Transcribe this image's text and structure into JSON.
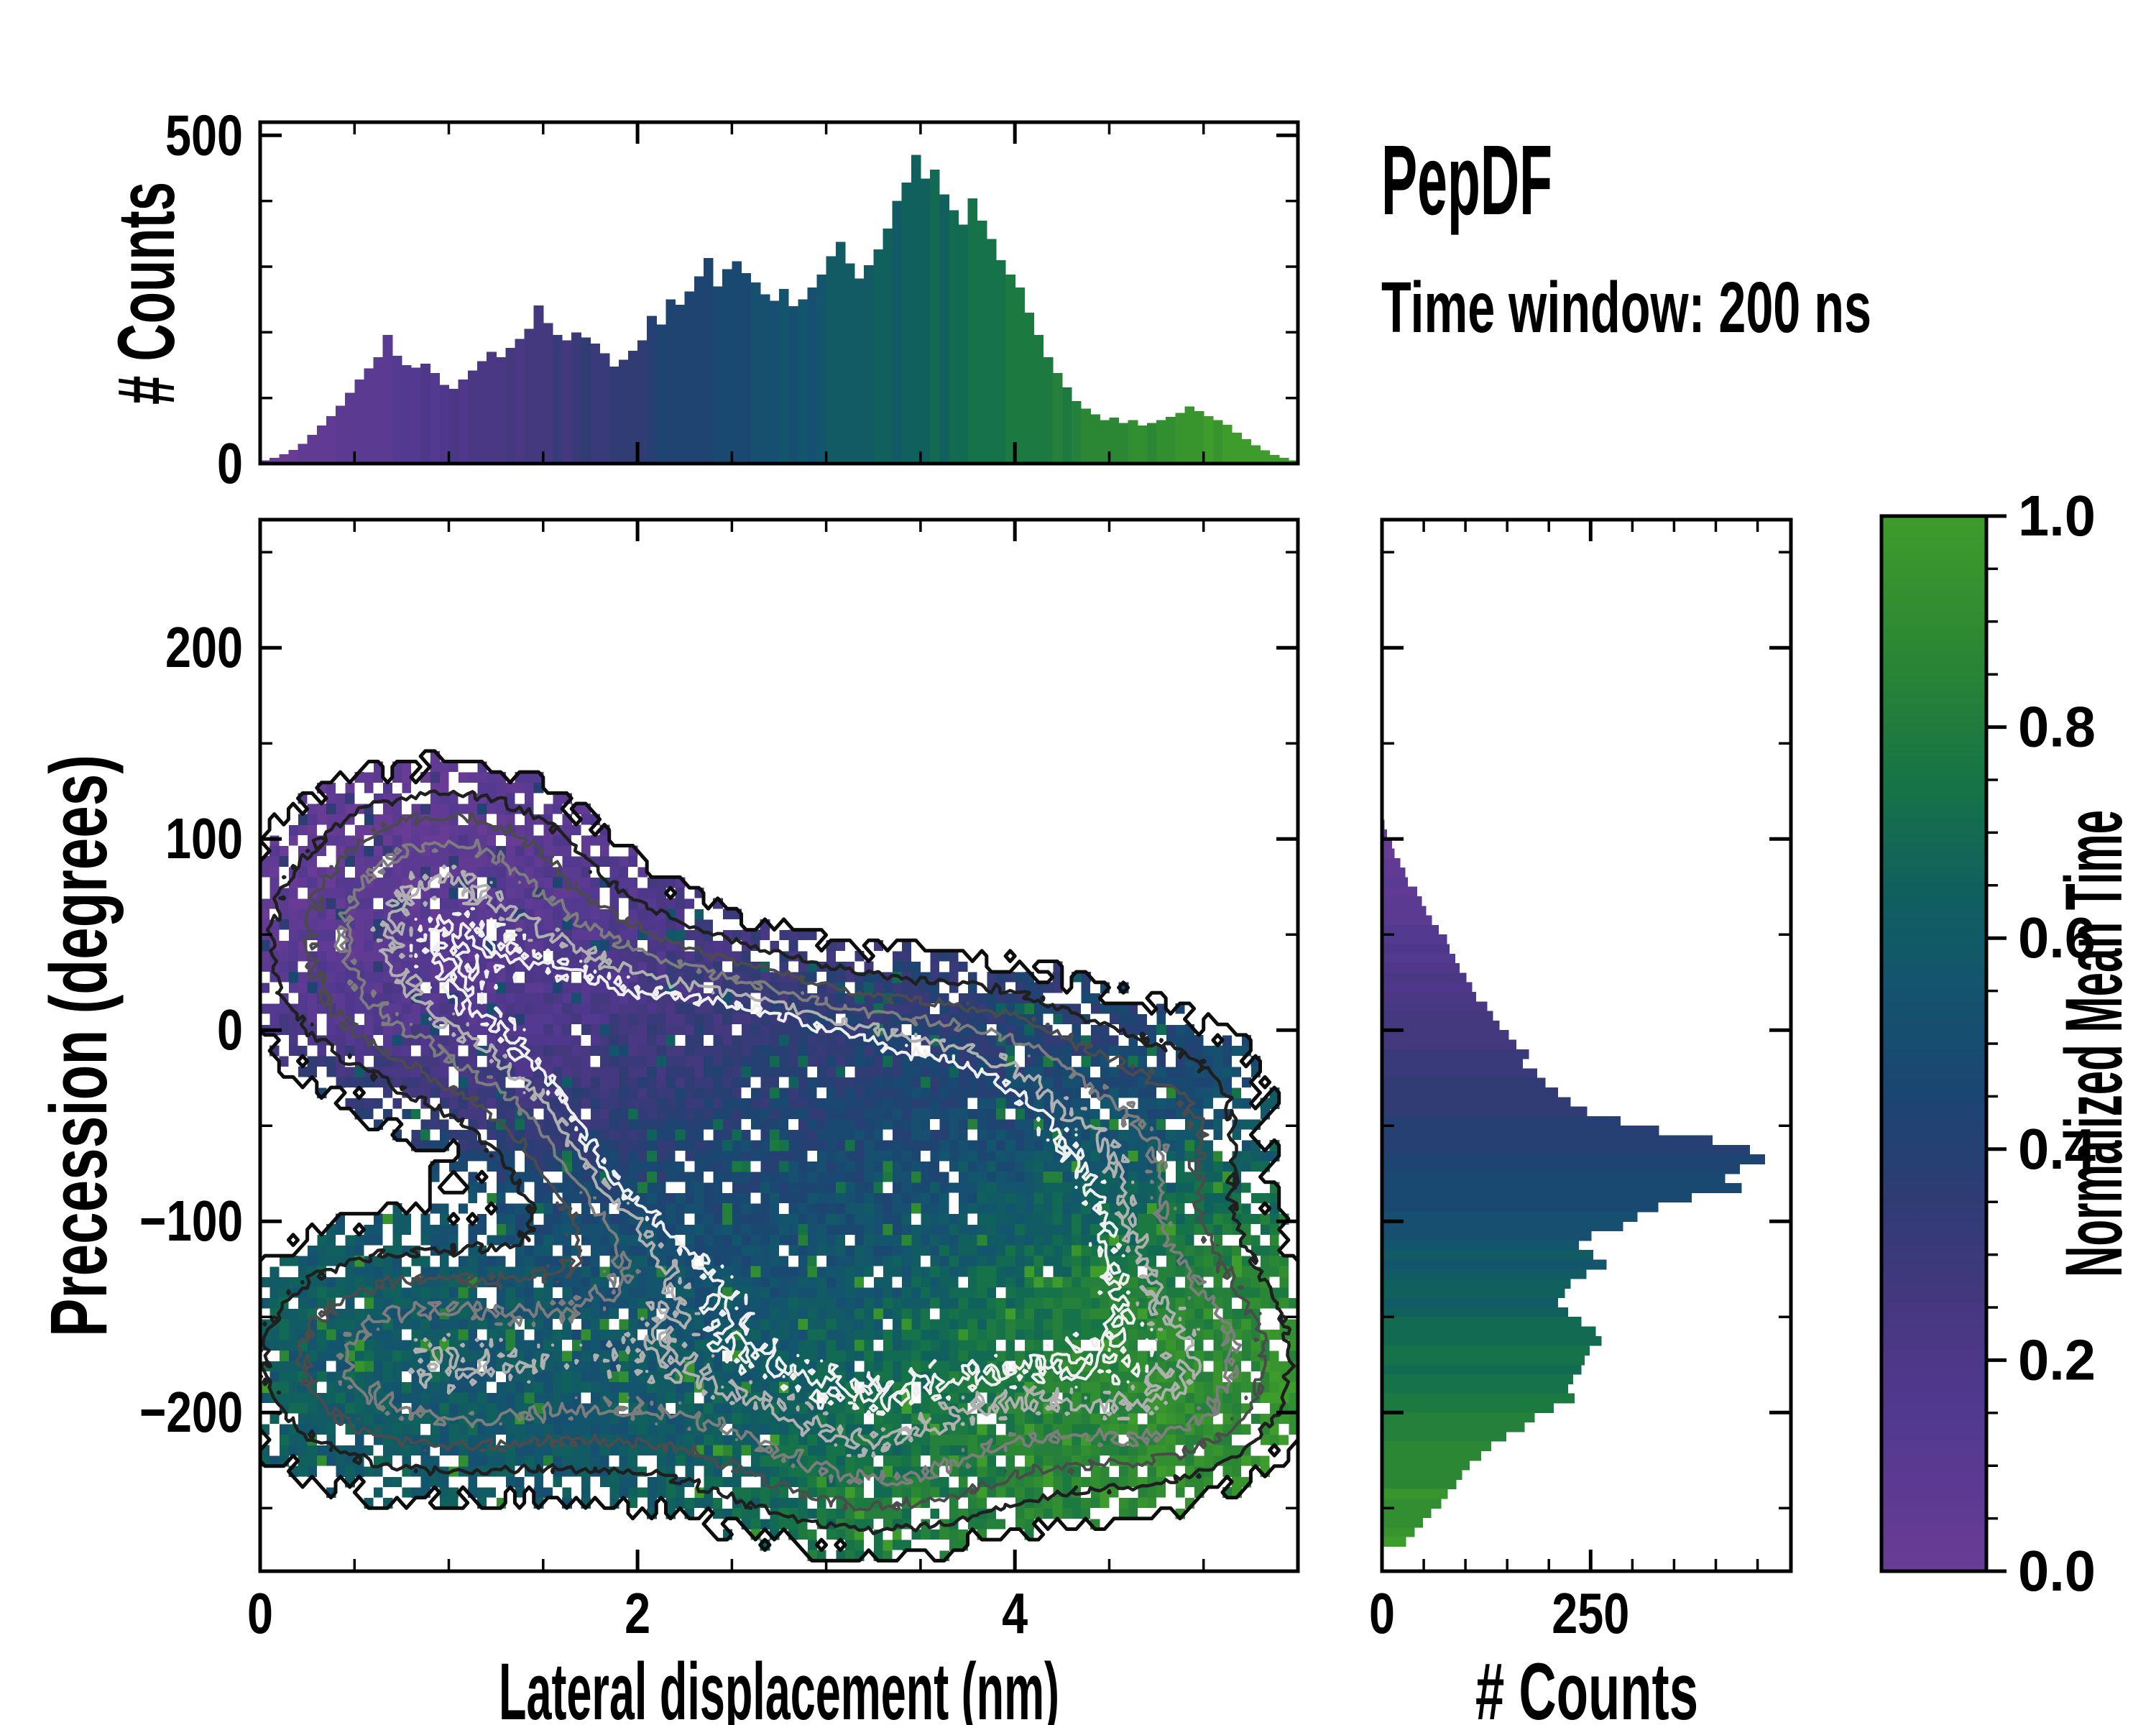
{
  "title": {
    "text": "PepDF"
  },
  "subtitle": {
    "text": "Time window: 200 ns"
  },
  "background": "#ffffff",
  "colormap": {
    "label": "Normalized Mean Time",
    "stops": [
      [
        0.0,
        "#683C94"
      ],
      [
        0.14,
        "#533990"
      ],
      [
        0.25,
        "#463780"
      ],
      [
        0.35,
        "#2F3C73"
      ],
      [
        0.45,
        "#1B4572"
      ],
      [
        0.55,
        "#14536E"
      ],
      [
        0.65,
        "#10615E"
      ],
      [
        0.75,
        "#177445"
      ],
      [
        0.87,
        "#2B8733"
      ],
      [
        1.0,
        "#3E9C2C"
      ]
    ]
  },
  "chart_data": [
    {
      "id": "top_histogram",
      "type": "bar",
      "orientation": "vertical",
      "ylabel": "# Counts",
      "x_range": [
        0,
        5.5
      ],
      "y_range": [
        0,
        520
      ],
      "bin_width_nm": 0.05,
      "yticks": [
        {
          "label": "0",
          "v": 0
        },
        {
          "label": "500",
          "v": 500
        }
      ],
      "ytick_minor_step": 100,
      "xtick_major": [
        0,
        2,
        4
      ],
      "xtick_minor_step": 0.5,
      "color_by": "normalized mean time vs lateral displacement",
      "values": [
        5,
        9,
        14,
        21,
        30,
        44,
        58,
        72,
        88,
        108,
        128,
        145,
        162,
        196,
        164,
        150,
        146,
        152,
        138,
        120,
        114,
        128,
        142,
        156,
        170,
        162,
        176,
        190,
        205,
        241,
        214,
        196,
        188,
        200,
        192,
        183,
        168,
        148,
        158,
        172,
        188,
        225,
        212,
        250,
        242,
        262,
        285,
        313,
        270,
        296,
        308,
        290,
        276,
        258,
        248,
        266,
        240,
        250,
        268,
        288,
        316,
        338,
        305,
        282,
        302,
        326,
        358,
        400,
        428,
        470,
        434,
        448,
        410,
        386,
        364,
        404,
        370,
        342,
        310,
        288,
        268,
        230,
        196,
        162,
        138,
        116,
        95,
        84,
        75,
        66,
        70,
        62,
        66,
        58,
        62,
        66,
        71,
        77,
        87,
        80,
        72,
        66,
        59,
        47,
        37,
        28,
        20,
        13,
        9,
        5
      ]
    },
    {
      "id": "joint_heatmap",
      "type": "heatmap",
      "xlabel": "Lateral displacement (nm)",
      "ylabel": "Precession (degrees)",
      "x_range": [
        0,
        5.5
      ],
      "y_range": [
        -283,
        267
      ],
      "xticks": [
        {
          "label": "0",
          "v": 0
        },
        {
          "label": "2",
          "v": 2
        },
        {
          "label": "4",
          "v": 4
        }
      ],
      "yticks": [
        {
          "label": "200",
          "v": 200
        },
        {
          "label": "100",
          "v": 100
        },
        {
          "label": "0",
          "v": 0
        },
        {
          "label": "−100",
          "v": -100
        },
        {
          "label": "−200",
          "v": -200
        }
      ],
      "xtick_minor_step": 0.5,
      "ytick_minor_step": 50,
      "grid_cells": [
        110,
        100
      ],
      "cell_size": [
        0.05,
        5.5
      ],
      "mask_threshold": 0.13,
      "density_blobs": [
        [
          0.75,
          45,
          0.55,
          48,
          0.62
        ],
        [
          1.5,
          15,
          0.5,
          38,
          0.6
        ],
        [
          1.1,
          90,
          0.45,
          30,
          0.3
        ],
        [
          2.1,
          -25,
          0.55,
          45,
          0.65
        ],
        [
          2.35,
          -50,
          0.45,
          38,
          0.75
        ],
        [
          2.75,
          -45,
          0.5,
          40,
          0.7
        ],
        [
          3.25,
          -70,
          0.65,
          48,
          1.05
        ],
        [
          3.9,
          -20,
          0.45,
          35,
          0.35
        ],
        [
          4.85,
          -45,
          0.38,
          38,
          0.33
        ],
        [
          4.1,
          -90,
          0.5,
          40,
          0.45
        ],
        [
          0.65,
          -170,
          0.55,
          42,
          0.52
        ],
        [
          1.5,
          -180,
          0.65,
          38,
          0.45
        ],
        [
          2.6,
          -160,
          0.7,
          45,
          0.5
        ],
        [
          3.5,
          -165,
          0.7,
          45,
          0.55
        ],
        [
          4.35,
          -140,
          0.55,
          42,
          0.48
        ],
        [
          5.1,
          -165,
          0.35,
          35,
          0.3
        ],
        [
          4.7,
          -200,
          0.45,
          32,
          0.4
        ],
        [
          3.3,
          -230,
          0.6,
          30,
          0.38
        ]
      ],
      "time_anchors": [
        [
          0.7,
          60,
          0.03
        ],
        [
          1.4,
          25,
          0.1
        ],
        [
          2.1,
          -5,
          0.25
        ],
        [
          2.6,
          -45,
          0.37
        ],
        [
          3.3,
          -70,
          0.42
        ],
        [
          3.0,
          -110,
          0.5
        ],
        [
          2.4,
          -120,
          0.55
        ],
        [
          0.7,
          -165,
          0.63
        ],
        [
          1.7,
          -185,
          0.57
        ],
        [
          3.2,
          -165,
          0.72
        ],
        [
          3.7,
          -230,
          0.82
        ],
        [
          4.2,
          -130,
          0.88
        ],
        [
          4.9,
          -205,
          0.93
        ],
        [
          5.2,
          -150,
          0.95
        ],
        [
          4.85,
          -45,
          0.45
        ],
        [
          3.9,
          -15,
          0.33
        ],
        [
          0.3,
          -100,
          0.6
        ]
      ],
      "contour_levels": [
        0.3,
        0.45,
        0.62,
        0.8,
        0.95
      ],
      "contour_colors": [
        "#1f1f1f",
        "#4b4b4b",
        "#7d7d7d",
        "#b0b0b0",
        "#efefef"
      ],
      "boundary_color": "#0d0d0d"
    },
    {
      "id": "right_histogram",
      "type": "bar",
      "orientation": "horizontal",
      "xlabel": "# Counts",
      "x_range": [
        0,
        490
      ],
      "y_range": [
        -283,
        267
      ],
      "bin_height_deg": 5,
      "y_start": 110,
      "xticks": [
        {
          "label": "0",
          "v": 0
        },
        {
          "label": "250",
          "v": 250
        }
      ],
      "xtick_minor_step": 50,
      "ytick_minor_step": 50,
      "color_by": "normalized mean time vs precession",
      "values": [
        3,
        6,
        12,
        15,
        22,
        28,
        31,
        42,
        48,
        53,
        60,
        68,
        78,
        81,
        88,
        93,
        101,
        108,
        113,
        126,
        133,
        141,
        152,
        161,
        176,
        169,
        186,
        196,
        211,
        226,
        246,
        286,
        332,
        396,
        441,
        459,
        429,
        411,
        431,
        371,
        331,
        306,
        289,
        251,
        236,
        253,
        269,
        245,
        226,
        219,
        211,
        223,
        239,
        256,
        263,
        249,
        243,
        239,
        229,
        223,
        231,
        206,
        183,
        171,
        149,
        131,
        119,
        105,
        96,
        89,
        79,
        71,
        59,
        49,
        39,
        29
      ]
    },
    {
      "id": "colorbar",
      "type": "colorbar",
      "label": "Normalized Mean Time",
      "range": [
        0,
        1
      ],
      "ticks": [
        {
          "label": "0.0",
          "v": 0.0
        },
        {
          "label": "0.2",
          "v": 0.2
        },
        {
          "label": "0.4",
          "v": 0.4
        },
        {
          "label": "0.6",
          "v": 0.6
        },
        {
          "label": "0.8",
          "v": 0.8
        },
        {
          "label": "1.0",
          "v": 1.0
        }
      ],
      "minor_step": 0.05
    }
  ]
}
